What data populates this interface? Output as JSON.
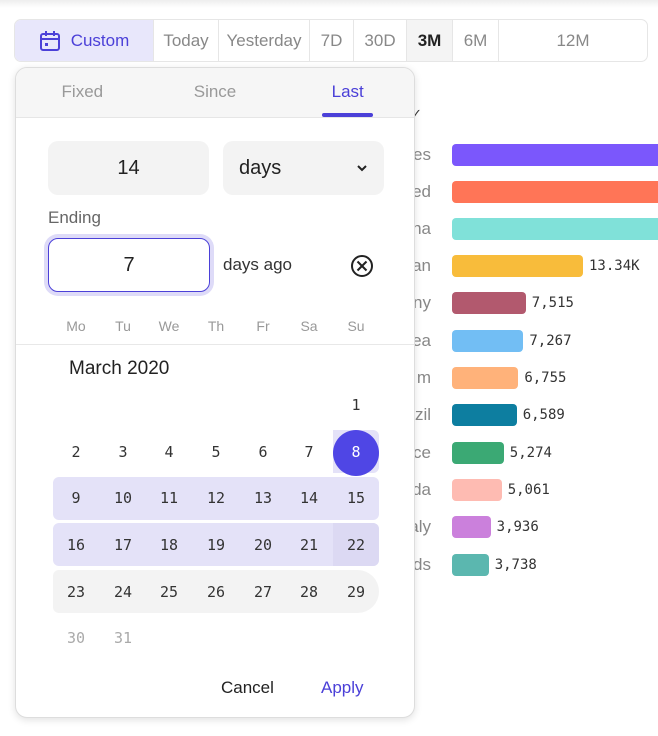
{
  "range_bar": {
    "items": [
      {
        "label": "Custom",
        "icon": "calendar-icon",
        "state": "selected"
      },
      {
        "label": "Today"
      },
      {
        "label": "Yesterday"
      },
      {
        "label": "7D"
      },
      {
        "label": "30D"
      },
      {
        "label": "3M",
        "state": "active"
      },
      {
        "label": "6M"
      },
      {
        "label": "12M"
      }
    ]
  },
  "chart_data": {
    "type": "bar",
    "orientation": "horizontal",
    "categories": [
      "es",
      "ed",
      "na",
      "an",
      "ny",
      "ea",
      "m",
      "zil",
      "ce",
      "da",
      "aly",
      "ds"
    ],
    "values": [
      null,
      null,
      null,
      13340,
      7515,
      7267,
      6755,
      6589,
      5274,
      5061,
      3936,
      3738
    ],
    "value_labels": [
      "",
      "",
      "",
      "13.34K",
      "7,515",
      "7,267",
      "6,755",
      "6,589",
      "5,274",
      "5,061",
      "3,936",
      "3,738"
    ],
    "colors": [
      "#7b57fc",
      "#ff7557",
      "#80e1d9",
      "#f8bc3b",
      "#b2596e",
      "#72bef4",
      "#ffb27a",
      "#0d7ea0",
      "#3ba974",
      "#febbb2",
      "#cb80dc",
      "#5bb7af"
    ]
  },
  "popup": {
    "tabs": [
      "Fixed",
      "Since",
      "Last"
    ],
    "active_tab": "Last",
    "count_value": "14",
    "unit_value": "days",
    "ending_label": "Ending",
    "ending_value": "7",
    "ending_suffix": "days ago",
    "weekdays": [
      "Mo",
      "Tu",
      "We",
      "Th",
      "Fr",
      "Sa",
      "Su"
    ],
    "month_title": "March 2020",
    "days": [
      "1",
      "2",
      "3",
      "4",
      "5",
      "6",
      "7",
      "8",
      "9",
      "10",
      "11",
      "12",
      "13",
      "14",
      "15",
      "16",
      "17",
      "18",
      "19",
      "20",
      "21",
      "22",
      "23",
      "24",
      "25",
      "26",
      "27",
      "28",
      "29",
      "30",
      "31"
    ],
    "selected_day": "8",
    "cancel_label": "Cancel",
    "apply_label": "Apply"
  },
  "colors": {
    "accent": "#4b40d8",
    "range_fill": "#e4e2f8",
    "selected_circle": "#4f46e5"
  }
}
